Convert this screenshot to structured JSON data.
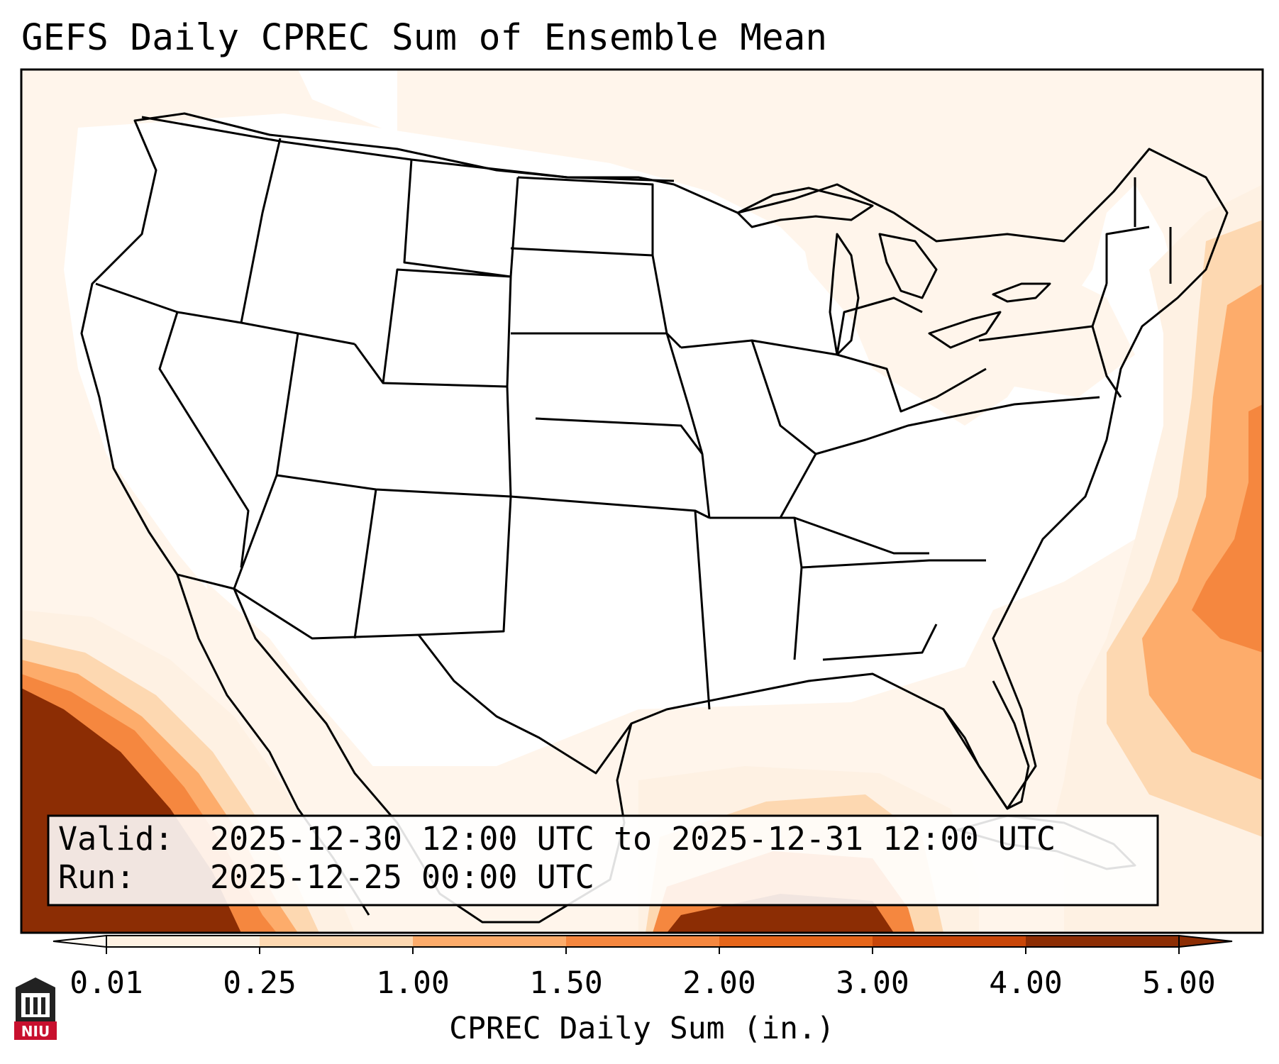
{
  "title": "GEFS Daily CPREC Sum of Ensemble Mean",
  "info_box": {
    "valid_label": "Valid:",
    "valid_value": "2025-12-30 12:00 UTC to 2025-12-31 12:00 UTC",
    "run_label": "Run:",
    "run_value": "2025-12-25 00:00 UTC"
  },
  "colorbar": {
    "label": "CPREC Daily Sum (in.)",
    "ticks": [
      "0.01",
      "0.25",
      "1.00",
      "1.50",
      "2.00",
      "3.00",
      "4.00",
      "5.00"
    ],
    "colors": [
      "#fef1e3",
      "#fdd8b1",
      "#fdac6b",
      "#f5873f",
      "#e6661a",
      "#c84609",
      "#8c2d04"
    ],
    "extend": "both"
  },
  "logo": {
    "text": "NIU",
    "color": "#c8102e"
  }
}
